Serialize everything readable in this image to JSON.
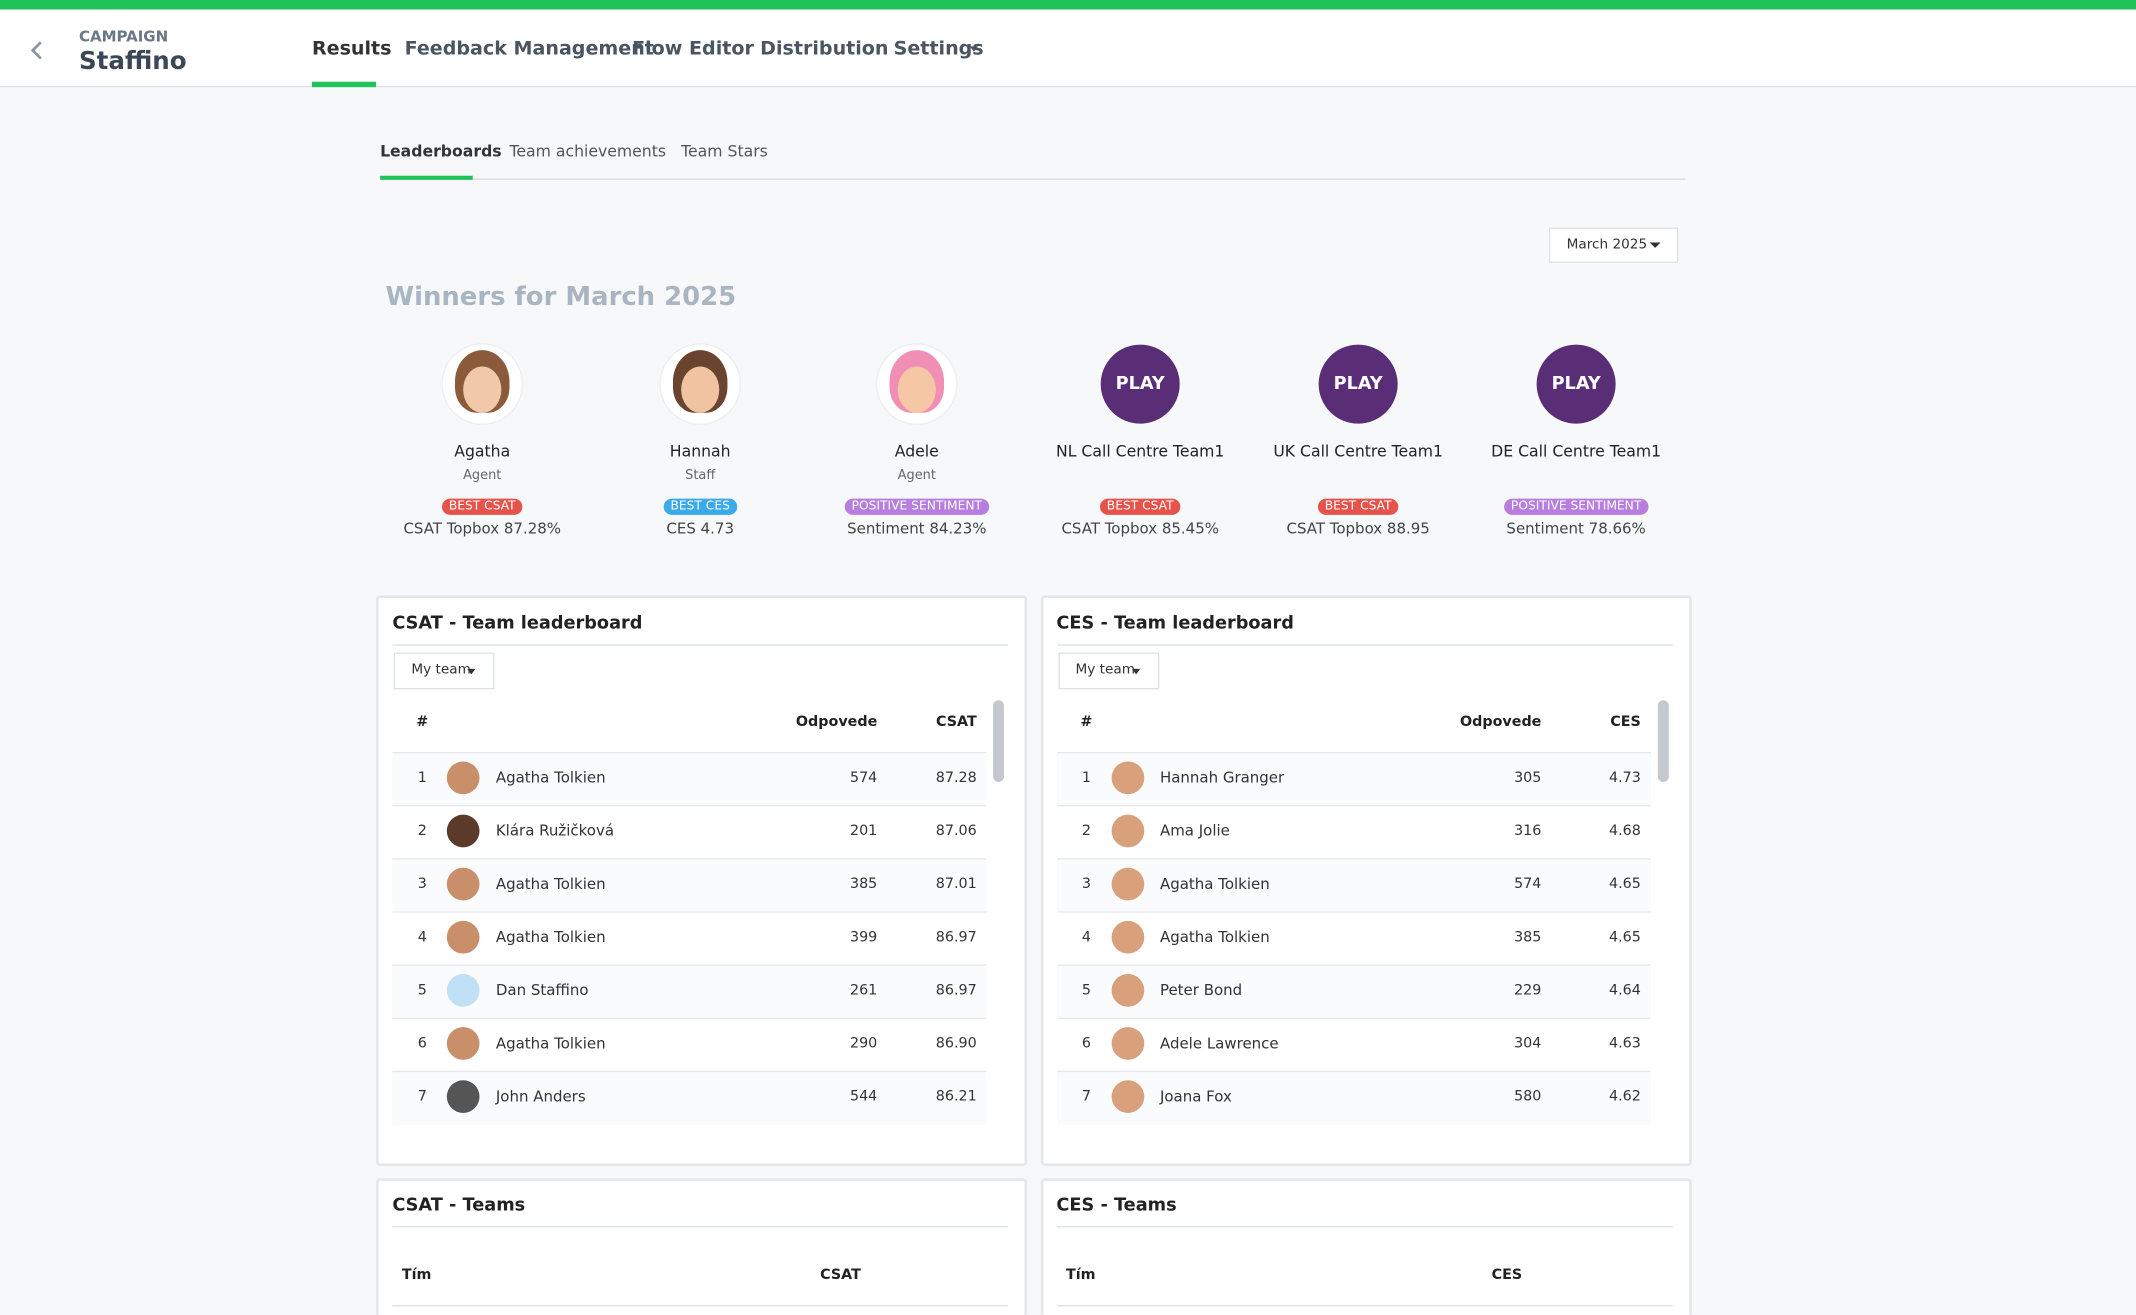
{
  "header": {
    "label": "CAMPAIGN",
    "title": "Staffino",
    "tabs": [
      "Results",
      "Feedback Management",
      "Flow Editor",
      "Distribution",
      "Settings"
    ]
  },
  "subtabs": [
    "Leaderboards",
    "Team achievements",
    "Team Stars"
  ],
  "period": "March 2025",
  "winners_title": "Winners for March 2025",
  "winners": [
    {
      "name": "Agatha",
      "role": "Agent",
      "badge": "BEST CSAT",
      "metric": "CSAT Topbox 87.28%"
    },
    {
      "name": "Hannah",
      "role": "Staff",
      "badge": "BEST CES",
      "metric": "CES 4.73"
    },
    {
      "name": "Adele",
      "role": "Agent",
      "badge": "POSITIVE SENTIMENT",
      "metric": "Sentiment 84.23%"
    },
    {
      "name": "NL Call Centre Team1",
      "logo": "PLAY",
      "badge": "BEST CSAT",
      "metric": "CSAT Topbox 85.45%"
    },
    {
      "name": "UK Call Centre Team1",
      "logo": "PLAY",
      "badge": "BEST CSAT",
      "metric": "CSAT Topbox 88.95"
    },
    {
      "name": "DE Call Centre Team1",
      "logo": "PLAY",
      "badge": "POSITIVE SENTIMENT",
      "metric": "Sentiment 78.66%"
    }
  ],
  "leaderboards": [
    {
      "title": "CSAT - Team leaderboard",
      "filter": "My team",
      "columns": [
        "#",
        "Odpovede",
        "CSAT"
      ],
      "rows": [
        [
          "1",
          "Agatha Tolkien",
          "574",
          "87.28"
        ],
        [
          "2",
          "Klára Ružičková",
          "201",
          "87.06"
        ],
        [
          "3",
          "Agatha Tolkien",
          "385",
          "87.01"
        ],
        [
          "4",
          "Agatha Tolkien",
          "399",
          "86.97"
        ],
        [
          "5",
          "Dan Staffino",
          "261",
          "86.97"
        ],
        [
          "6",
          "Agatha Tolkien",
          "290",
          "86.90"
        ],
        [
          "7",
          "John Anders",
          "544",
          "86.21"
        ]
      ]
    },
    {
      "title": "CES - Team leaderboard",
      "filter": "My team",
      "columns": [
        "#",
        "Odpovede",
        "CES"
      ],
      "rows": [
        [
          "1",
          "Hannah Granger",
          "305",
          "4.73"
        ],
        [
          "2",
          "Ama Jolie",
          "316",
          "4.68"
        ],
        [
          "3",
          "Agatha Tolkien",
          "574",
          "4.65"
        ],
        [
          "4",
          "Agatha Tolkien",
          "385",
          "4.65"
        ],
        [
          "5",
          "Peter Bond",
          "229",
          "4.64"
        ],
        [
          "6",
          "Adele Lawrence",
          "304",
          "4.63"
        ],
        [
          "7",
          "Joana Fox",
          "580",
          "4.62"
        ]
      ]
    }
  ],
  "teams": [
    {
      "title": "CSAT - Teams",
      "columns": [
        "Tím",
        "CSAT"
      ]
    },
    {
      "title": "CES - Teams",
      "columns": [
        "Tím",
        "CES"
      ]
    }
  ]
}
